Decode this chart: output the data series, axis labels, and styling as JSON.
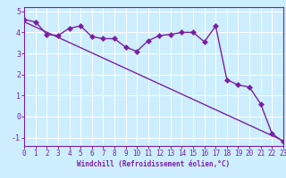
{
  "title": "",
  "xlabel": "Windchill (Refroidissement éolien,°C)",
  "ylabel": "",
  "background_color": "#cceeff",
  "line_color": "#7b1fa2",
  "grid_color": "#aaddee",
  "xlim": [
    0,
    23
  ],
  "ylim": [
    -1.4,
    5.2
  ],
  "yticks": [
    -1,
    0,
    1,
    2,
    3,
    4,
    5
  ],
  "xticks": [
    0,
    1,
    2,
    3,
    4,
    5,
    6,
    7,
    8,
    9,
    10,
    11,
    12,
    13,
    14,
    15,
    16,
    17,
    18,
    19,
    20,
    21,
    22,
    23
  ],
  "data_x": [
    0,
    1,
    2,
    3,
    4,
    5,
    6,
    7,
    8,
    9,
    10,
    11,
    12,
    13,
    14,
    15,
    16,
    17,
    18,
    19,
    20,
    21,
    22,
    23
  ],
  "data_y": [
    4.6,
    4.5,
    3.9,
    3.85,
    4.2,
    4.3,
    3.8,
    3.7,
    3.7,
    3.3,
    3.1,
    3.6,
    3.85,
    3.9,
    4.0,
    4.0,
    3.55,
    4.3,
    1.75,
    1.5,
    1.4,
    0.6,
    -0.8,
    -1.2
  ],
  "trend_x": [
    0,
    23
  ],
  "trend_y": [
    4.5,
    -1.15
  ],
  "marker_size": 3,
  "line_width": 1.0,
  "tick_fontsize": 5.5,
  "xlabel_fontsize": 5.5
}
